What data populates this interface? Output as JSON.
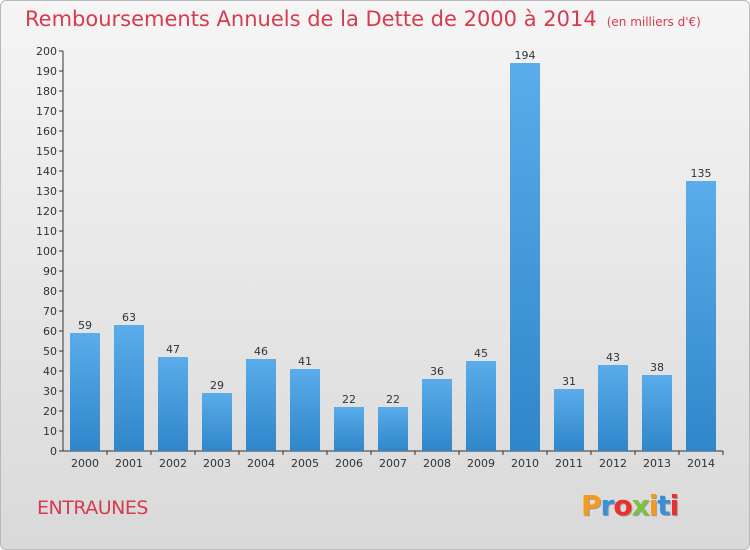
{
  "chart_data": {
    "type": "bar",
    "title": "Remboursements Annuels de la Dette de 2000 à 2014",
    "subtitle": "(en milliers d'€)",
    "categories": [
      "2000",
      "2001",
      "2002",
      "2003",
      "2004",
      "2005",
      "2006",
      "2007",
      "2008",
      "2009",
      "2010",
      "2011",
      "2012",
      "2013",
      "2014"
    ],
    "values": [
      59,
      63,
      47,
      29,
      46,
      41,
      22,
      22,
      36,
      45,
      194,
      31,
      43,
      38,
      135
    ],
    "ylim": [
      0,
      200
    ],
    "ytick_step": 10,
    "grid": false,
    "bar_color_top": "#5aacea",
    "bar_color_bottom": "#2f86c9"
  },
  "place_name": "ENTRAUNES",
  "logo": {
    "letters": [
      "P",
      "r",
      "o",
      "x",
      "i",
      "t",
      "i"
    ],
    "colors": [
      "#f39a1f",
      "#3b8fd9",
      "#e9302e",
      "#7cc142",
      "#f39a1f",
      "#3b8fd9",
      "#e9302e"
    ]
  }
}
